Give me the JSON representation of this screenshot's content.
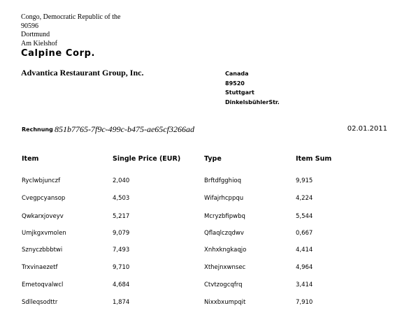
{
  "sender": {
    "address_lines": [
      "Congo, Democratic Republic of the",
      "90596",
      "Dortmund",
      "Am Kielshof"
    ],
    "company": "Calpine Corp."
  },
  "recipient": {
    "name": "Advantica Restaurant Group, Inc.",
    "address_lines": [
      "Canada",
      "89520",
      "Stuttgart",
      "DinkelsbühlerStr."
    ]
  },
  "invoice": {
    "label": "Rechnung",
    "id": "851b7765-7f9c-499c-b475-ae65cf3266ad",
    "date": "02.01.2011"
  },
  "table": {
    "headers": [
      "Item",
      "Single Price (EUR)",
      "Type",
      "Item Sum"
    ],
    "rows": [
      [
        "Ryclwbjunczf",
        "2,040",
        "Brftdfgghioq",
        "9,915"
      ],
      [
        "Cvegpcyansop",
        "4,503",
        "Wifajrhcppqu",
        "4,224"
      ],
      [
        "Qwkarxjoveyv",
        "5,217",
        "Mcryzbfipwbq",
        "5,544"
      ],
      [
        "Umjkgxvmolen",
        "9,079",
        "Qflaqlczqdwv",
        "0,667"
      ],
      [
        "Sznyczbbbtwi",
        "7,493",
        "Xnhxkngkaqjo",
        "4,414"
      ],
      [
        "Trxvinaezetf",
        "9,710",
        "Xthejnxwnsec",
        "4,964"
      ],
      [
        "Emetoqvalwcl",
        "4,684",
        "Ctvtzogcqfrq",
        "3,414"
      ],
      [
        "Sdlleqsodttr",
        "1,874",
        "Nixxbxumpqit",
        "7,910"
      ]
    ]
  }
}
